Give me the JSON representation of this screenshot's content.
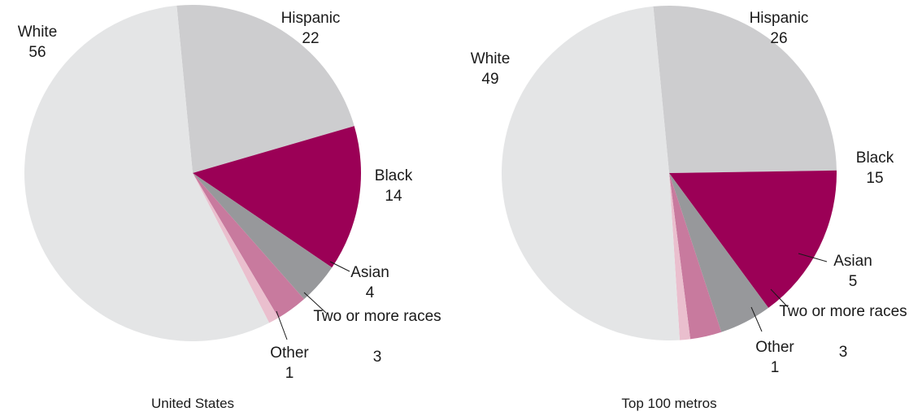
{
  "chart_data": [
    {
      "type": "pie",
      "caption": "United States",
      "slices": [
        {
          "label": "Hispanic",
          "value": 22,
          "color": "#cdcdcf"
        },
        {
          "label": "Black",
          "value": 14,
          "color": "#9b0056"
        },
        {
          "label": "Asian",
          "value": 4,
          "color": "#97989b"
        },
        {
          "label": "Two or more races",
          "value": 3,
          "color": "#c87a9e"
        },
        {
          "label": "Other",
          "value": 1,
          "color": "#eabfce"
        },
        {
          "label": "White",
          "value": 56,
          "color": "#e4e5e6"
        }
      ]
    },
    {
      "type": "pie",
      "caption": "Top 100 metros",
      "slices": [
        {
          "label": "Hispanic",
          "value": 26,
          "color": "#cdcdcf"
        },
        {
          "label": "Black",
          "value": 15,
          "color": "#9b0056"
        },
        {
          "label": "Asian",
          "value": 5,
          "color": "#97989b"
        },
        {
          "label": "Two or more races",
          "value": 3,
          "color": "#c87a9e"
        },
        {
          "label": "Other",
          "value": 1,
          "color": "#eabfce"
        },
        {
          "label": "White",
          "value": 49,
          "color": "#e4e5e6"
        }
      ]
    }
  ]
}
